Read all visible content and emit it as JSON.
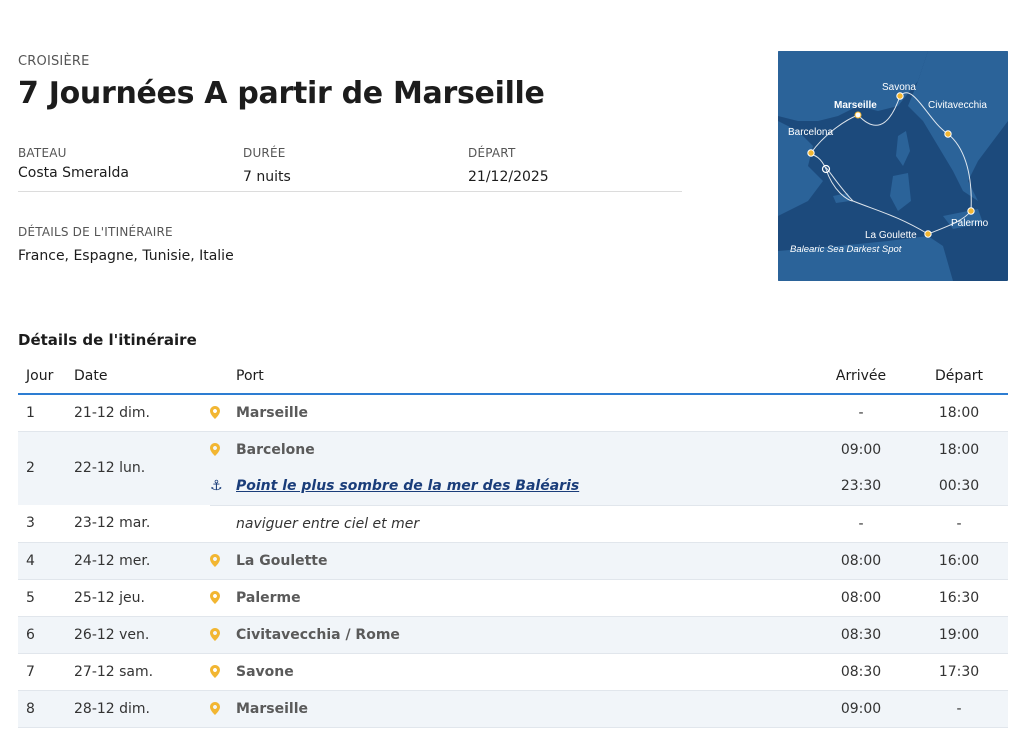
{
  "header": {
    "eyebrow": "CROISIÈRE",
    "title": "7 Journées A partir de Marseille"
  },
  "meta": {
    "ship_label": "BATEAU",
    "ship_value": "Costa Smeralda",
    "duration_label": "DURÉE",
    "duration_value": "7 nuits",
    "departure_label": "DÉPART",
    "departure_value": "21/12/2025",
    "itinerary_label": "DÉTAILS DE L'ITINÉRAIRE",
    "itinerary_value": "France, Espagne, Tunisie, Italie"
  },
  "map": {
    "labels": {
      "savona": "Savona",
      "marseille": "Marseille",
      "civitavecchia": "Civitavecchia",
      "barcelona": "Barcelona",
      "palermo": "Palermo",
      "la_goulette": "La Goulette",
      "balearic": "Balearic Sea Darkest Spot"
    },
    "colors": {
      "sea": "#1c4a7c",
      "land": "#2f6aa3",
      "route": "#ffffff",
      "marker": "#f2b632"
    }
  },
  "itinerary": {
    "section_title": "Détails de l'itinéraire",
    "columns": {
      "day": "Jour",
      "date": "Date",
      "port": "Port",
      "arrival": "Arrivée",
      "departure": "Départ"
    },
    "rows": [
      {
        "day": "1",
        "date": "21-12 dim.",
        "port": "Marseille",
        "arrival": "-",
        "departure": "18:00"
      },
      {
        "day": "2",
        "date": "22-12 lun.",
        "port": "Barcelone",
        "arrival": "09:00",
        "departure": "18:00"
      },
      {
        "day": "",
        "date": "",
        "port": "Point le plus sombre de la mer des Baléaris",
        "arrival": "23:30",
        "departure": "00:30"
      },
      {
        "day": "3",
        "date": "23-12 mar.",
        "port": "naviguer entre ciel et mer",
        "arrival": "-",
        "departure": "-"
      },
      {
        "day": "4",
        "date": "24-12 mer.",
        "port": "La Goulette",
        "arrival": "08:00",
        "departure": "16:00"
      },
      {
        "day": "5",
        "date": "25-12 jeu.",
        "port": "Palerme",
        "arrival": "08:00",
        "departure": "16:30"
      },
      {
        "day": "6",
        "date": "26-12 ven.",
        "port": "Civitavecchia / Rome",
        "arrival": "08:30",
        "departure": "19:00"
      },
      {
        "day": "7",
        "date": "27-12 sam.",
        "port": "Savone",
        "arrival": "08:30",
        "departure": "17:30"
      },
      {
        "day": "8",
        "date": "28-12 dim.",
        "port": "Marseille",
        "arrival": "09:00",
        "departure": "-"
      }
    ]
  },
  "icons": {
    "port": "map-pin-icon",
    "anchor": "anchor-icon"
  },
  "accent_color": "#2d7dd2",
  "pin_color": "#f2b632"
}
